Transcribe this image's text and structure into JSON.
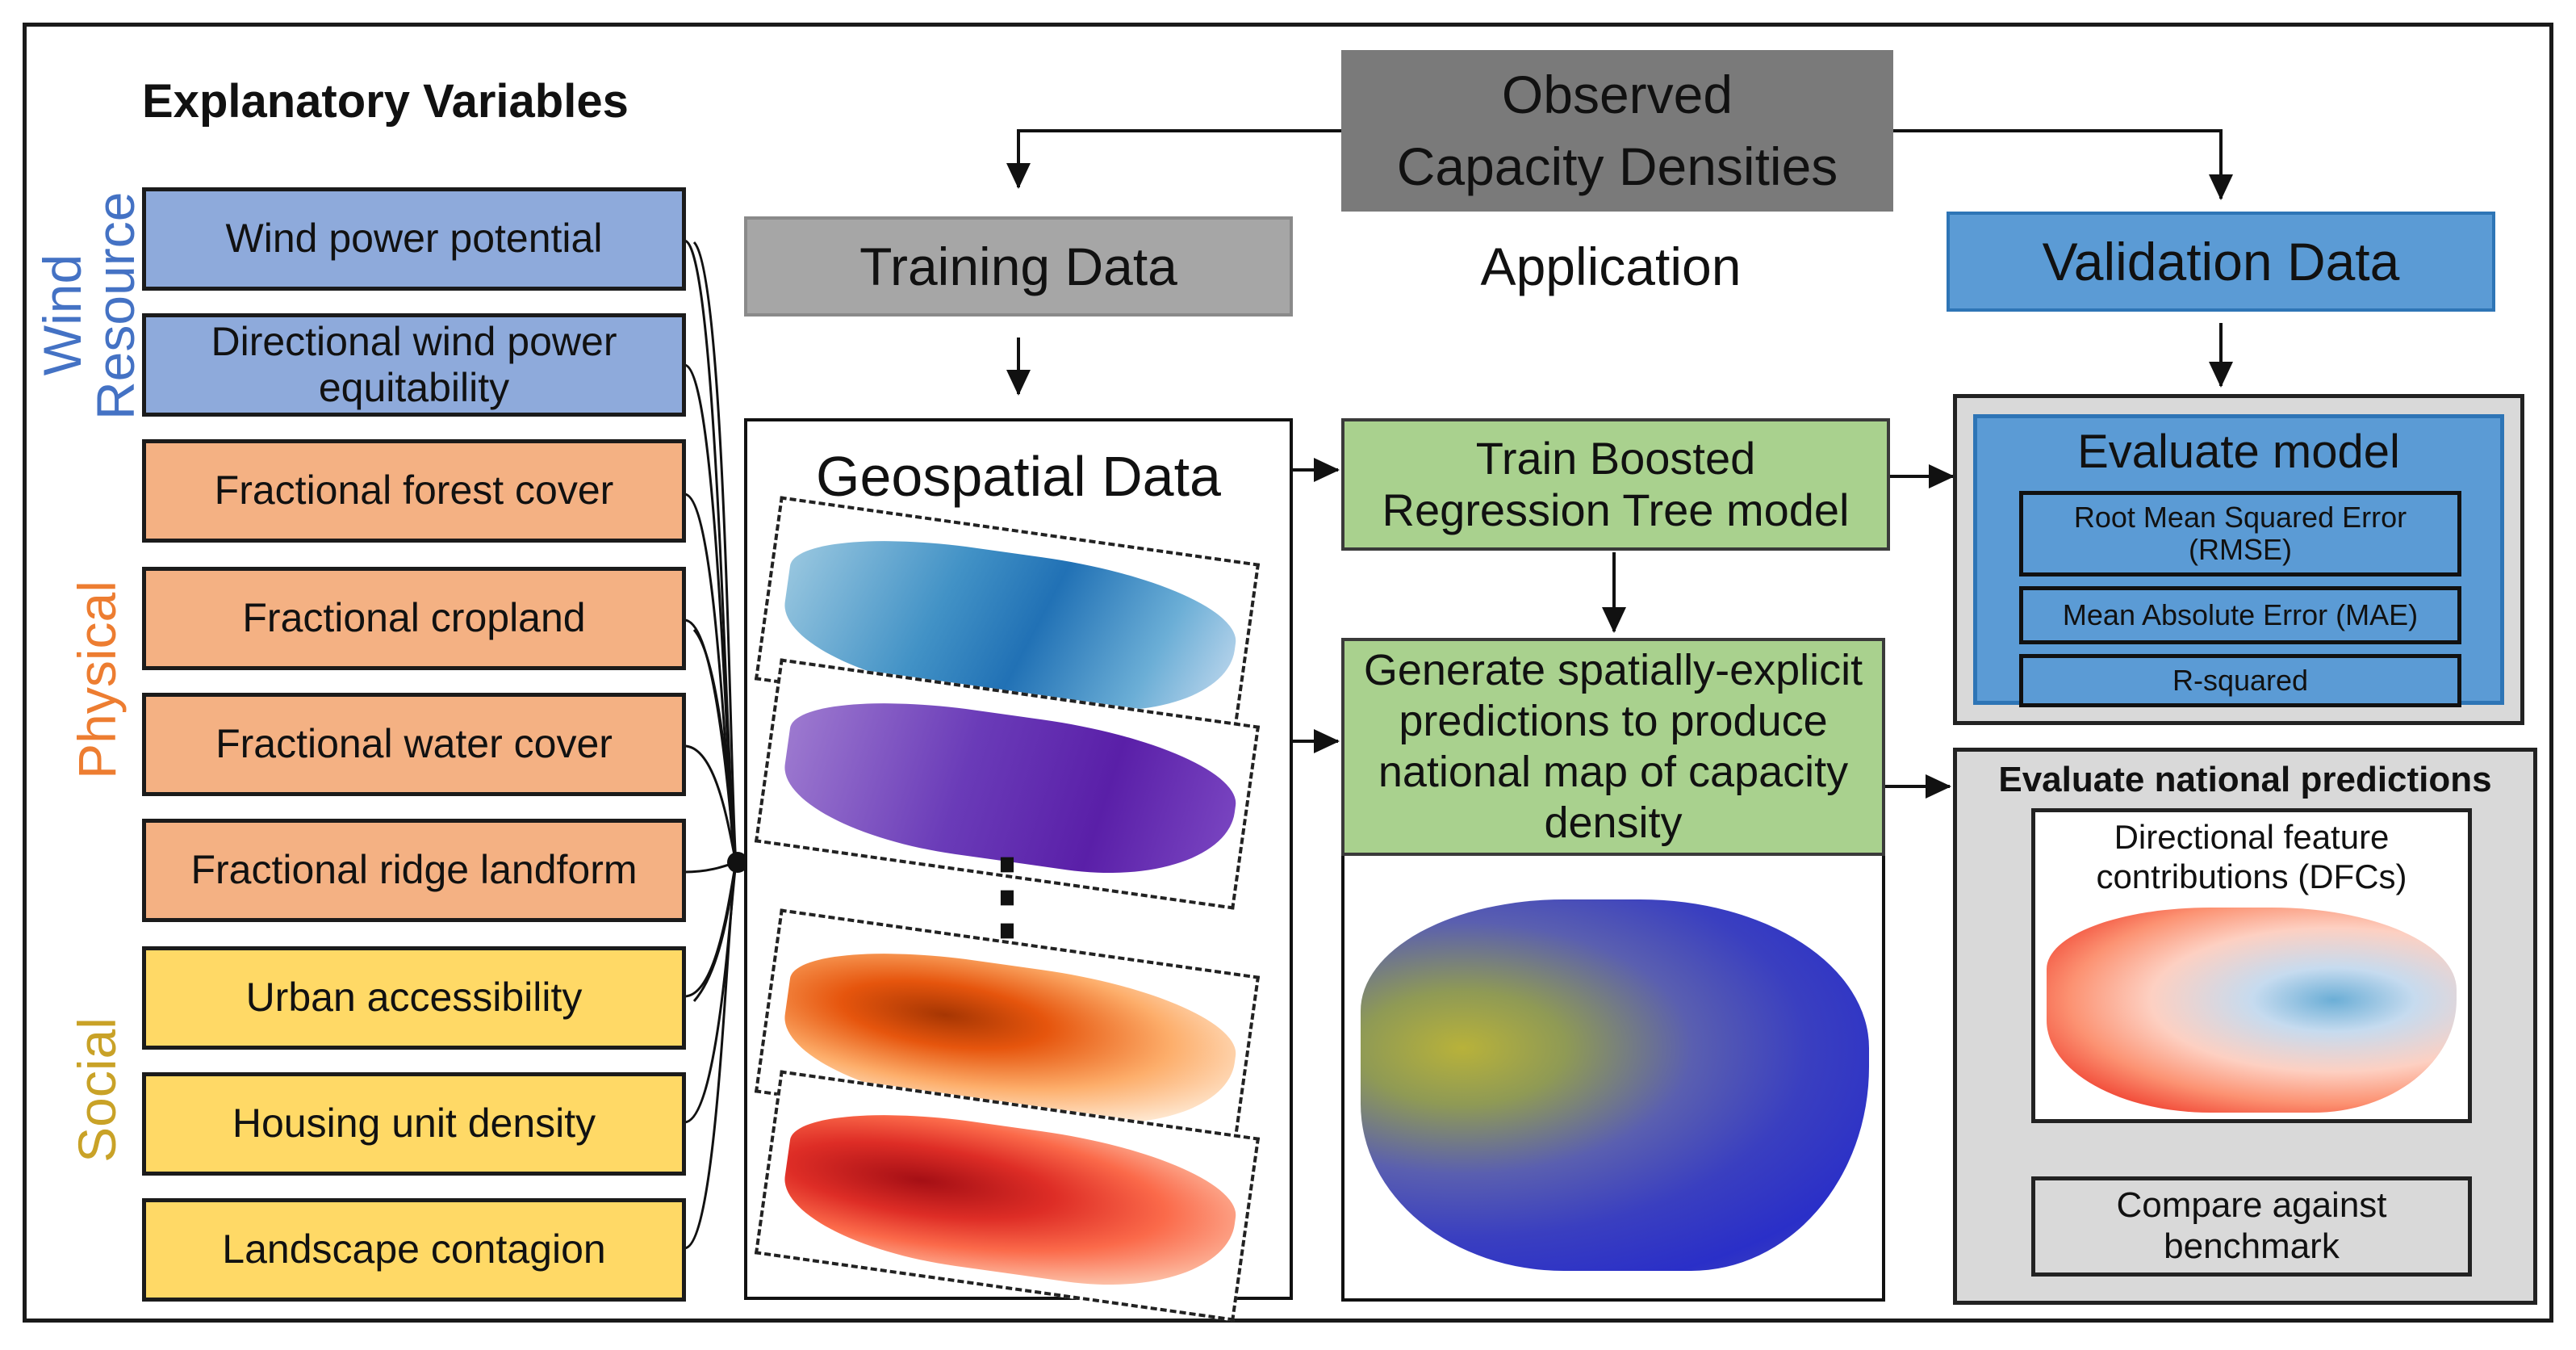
{
  "header": {
    "explanatory_title": "Explanatory Variables",
    "observed": "Observed Capacity Densities",
    "training": "Training Data",
    "application": "Application",
    "validation": "Validation Data"
  },
  "categories": {
    "wind": "Wind Resource",
    "physical": "Physical",
    "social": "Social"
  },
  "variables": [
    "Wind power potential",
    "Directional wind power equitability",
    "Fractional forest cover",
    "Fractional cropland",
    "Fractional water cover",
    "Fractional ridge landform",
    "Urban accessibility",
    "Housing unit density",
    "Landscape contagion"
  ],
  "geospatial": {
    "title": "Geospatial Data",
    "ellipsis": "⋮"
  },
  "application": {
    "train": "Train Boosted Regression Tree model",
    "generate": "Generate spatially-explicit predictions to produce national map of capacity density"
  },
  "validation": {
    "evaluate_model": "Evaluate model",
    "metrics": [
      "Root Mean Squared Error (RMSE)",
      "Mean Absolute Error (MAE)",
      "R-squared"
    ],
    "national_title": "Evaluate national predictions",
    "dfc": "Directional feature contributions (DFCs)",
    "compare": "Compare against benchmark"
  },
  "colors": {
    "wind": "#4472c4",
    "physical": "#ed7d31",
    "social": "#c9a227",
    "observed_box": "#7a7a7a",
    "training_box": "#a6a6a6",
    "validation_box": "#5b9bd5",
    "green_box": "#a9d18e"
  }
}
